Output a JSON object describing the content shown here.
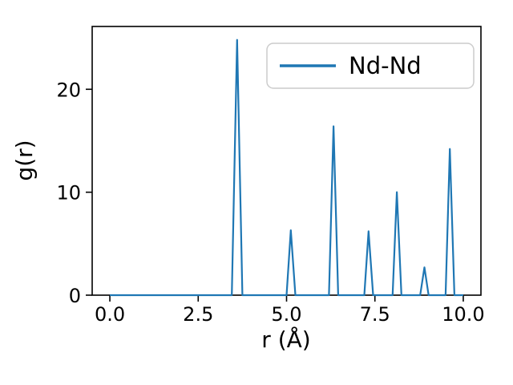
{
  "chart_data": {
    "type": "line",
    "title": "",
    "xlabel": "r (Å)",
    "ylabel": "g(r)",
    "xlim": [
      -0.5,
      10.5
    ],
    "ylim": [
      0,
      26.1
    ],
    "grid": false,
    "xticks": {
      "values": [
        0,
        2.5,
        5,
        7.5,
        10
      ],
      "labels": [
        "0.0",
        "2.5",
        "5.0",
        "7.5",
        "10.0"
      ]
    },
    "yticks": {
      "values": [
        0,
        10,
        20
      ],
      "labels": [
        "0",
        "10",
        "20"
      ]
    },
    "legend": {
      "position": "upper right",
      "entries": [
        {
          "label": "Nd-Nd",
          "color": "#1f77b4"
        }
      ]
    },
    "series": [
      {
        "name": "Nd-Nd",
        "color": "#1f77b4",
        "points": [
          [
            0.0,
            0
          ],
          [
            3.45,
            0
          ],
          [
            3.6,
            24.8
          ],
          [
            3.75,
            0
          ],
          [
            5.0,
            0
          ],
          [
            5.12,
            6.3
          ],
          [
            5.25,
            0
          ],
          [
            6.2,
            0
          ],
          [
            6.33,
            16.4
          ],
          [
            6.46,
            0
          ],
          [
            7.2,
            0
          ],
          [
            7.32,
            6.2
          ],
          [
            7.45,
            0
          ],
          [
            8.0,
            0
          ],
          [
            8.12,
            10.0
          ],
          [
            8.25,
            0
          ],
          [
            8.78,
            0
          ],
          [
            8.9,
            2.7
          ],
          [
            9.02,
            0
          ],
          [
            9.5,
            0
          ],
          [
            9.62,
            14.2
          ],
          [
            9.75,
            0
          ],
          [
            10.0,
            0
          ]
        ],
        "peak_positions": [
          3.6,
          5.12,
          6.33,
          7.32,
          8.12,
          8.9,
          9.62
        ],
        "peak_heights": [
          24.8,
          6.3,
          16.4,
          6.2,
          10.0,
          2.7,
          14.2
        ]
      }
    ]
  }
}
